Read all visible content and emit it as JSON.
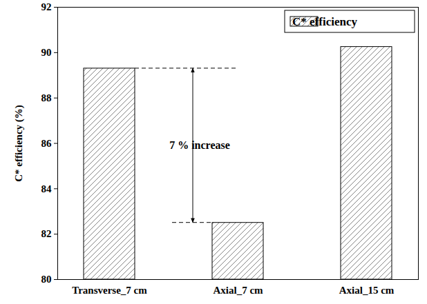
{
  "chart_data": {
    "type": "bar",
    "categories": [
      "Transverse_7 cm",
      "Axial_7 cm",
      "Axial_15 cm"
    ],
    "series": [
      {
        "name": "C* efficiency",
        "color": "#000000",
        "values": [
          89.3,
          82.5,
          90.25
        ]
      }
    ],
    "y_label": "C* efficiency (%)",
    "ylim": [
      80,
      92
    ],
    "yticks": [
      80,
      82,
      84,
      86,
      88,
      90,
      92
    ],
    "grid": false,
    "legend": "upper right",
    "annotations": [
      {
        "text": "7 % increase",
        "from": "Axial_7 cm",
        "to": "Transverse_7 cm"
      }
    ]
  }
}
